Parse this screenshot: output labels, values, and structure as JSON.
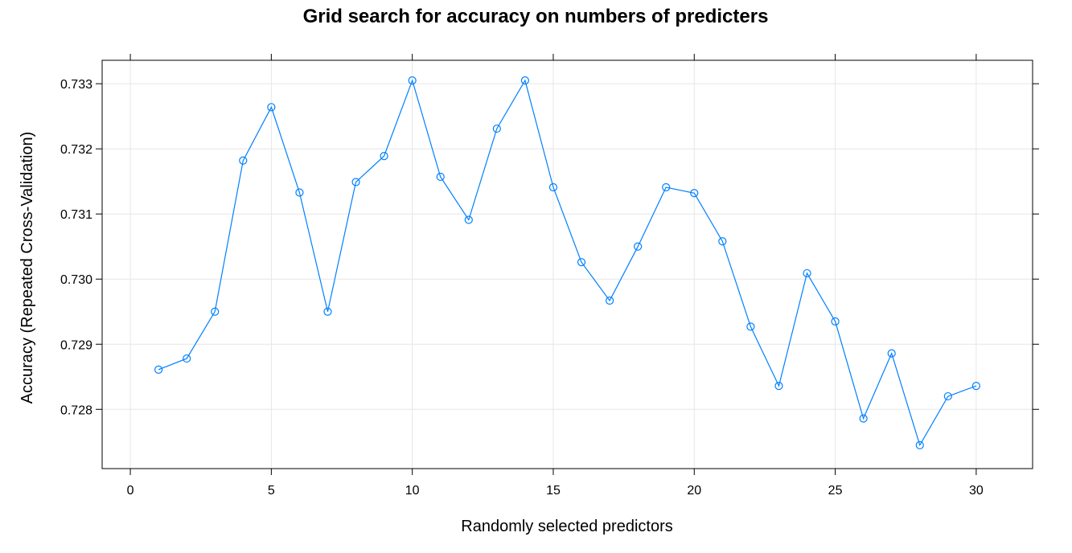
{
  "chart_data": {
    "type": "line",
    "title": "Grid search for accuracy on numbers of predicters",
    "xlabel": "Randomly selected predictors",
    "ylabel": "Accuracy (Repeated Cross-Validation)",
    "xlim": [
      -1,
      32
    ],
    "ylim": [
      0.72709,
      0.73336
    ],
    "xticks": [
      0,
      5,
      10,
      15,
      20,
      25,
      30
    ],
    "xtick_labels": [
      "0",
      "5",
      "10",
      "15",
      "20",
      "25",
      "30"
    ],
    "yticks": [
      0.728,
      0.729,
      0.73,
      0.731,
      0.732,
      0.733
    ],
    "ytick_labels": [
      "0.728",
      "0.729",
      "0.730",
      "0.731",
      "0.732",
      "0.733"
    ],
    "grid": true,
    "color": "#0080ff",
    "series": [
      {
        "x": [
          1,
          2,
          3,
          4,
          5,
          6,
          7,
          8,
          9,
          10,
          11,
          12,
          13,
          14,
          15,
          16,
          17,
          18,
          19,
          20,
          21,
          22,
          23,
          24,
          25,
          26,
          27,
          28,
          29,
          30
        ],
        "values": [
          0.72861,
          0.72878,
          0.7295,
          0.73182,
          0.73264,
          0.73133,
          0.7295,
          0.73149,
          0.73189,
          0.73305,
          0.73157,
          0.73091,
          0.73231,
          0.73305,
          0.73141,
          0.73026,
          0.72967,
          0.7305,
          0.73141,
          0.73132,
          0.73058,
          0.72927,
          0.72836,
          0.73009,
          0.72935,
          0.72786,
          0.72886,
          0.72745,
          0.7282,
          0.72836
        ]
      }
    ]
  }
}
